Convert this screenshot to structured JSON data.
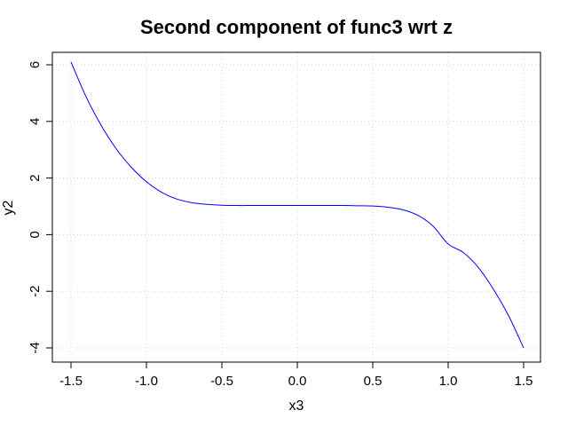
{
  "chart_data": {
    "type": "line",
    "title": "Second component of func3 wrt z",
    "xlabel": "x3",
    "ylabel": "y2",
    "xlim": [
      -1.5,
      1.5
    ],
    "ylim": [
      -4,
      6
    ],
    "xticks": [
      -1.5,
      -1.0,
      -0.5,
      0.0,
      0.5,
      1.0,
      1.5
    ],
    "xtick_labels": [
      "-1.5",
      "-1.0",
      "-0.5",
      "0.0",
      "0.5",
      "1.0",
      "1.5"
    ],
    "yticks": [
      -4,
      -2,
      0,
      2,
      4,
      6
    ],
    "ytick_labels": [
      "-4",
      "-2",
      "0",
      "2",
      "4",
      "6"
    ],
    "grid": true,
    "series": [
      {
        "name": "y2",
        "color": "#0000ff",
        "x": [
          -1.5,
          -1.4,
          -1.3,
          -1.2,
          -1.1,
          -1.0,
          -0.9,
          -0.8,
          -0.7,
          -0.6,
          -0.5,
          -0.4,
          -0.3,
          -0.2,
          -0.1,
          0.0,
          0.1,
          0.2,
          0.3,
          0.4,
          0.5,
          0.6,
          0.7,
          0.8,
          0.9,
          1.0,
          1.1,
          1.2,
          1.3,
          1.4,
          1.5
        ],
        "y": [
          6.1,
          4.87,
          3.86,
          3.03,
          2.38,
          1.87,
          1.5,
          1.26,
          1.13,
          1.07,
          1.04,
          1.03,
          1.03,
          1.03,
          1.03,
          1.03,
          1.03,
          1.03,
          1.03,
          1.02,
          1.01,
          0.97,
          0.88,
          0.68,
          0.3,
          -0.33,
          -0.63,
          -1.16,
          -1.93,
          -2.86,
          -4.0
        ]
      }
    ]
  }
}
